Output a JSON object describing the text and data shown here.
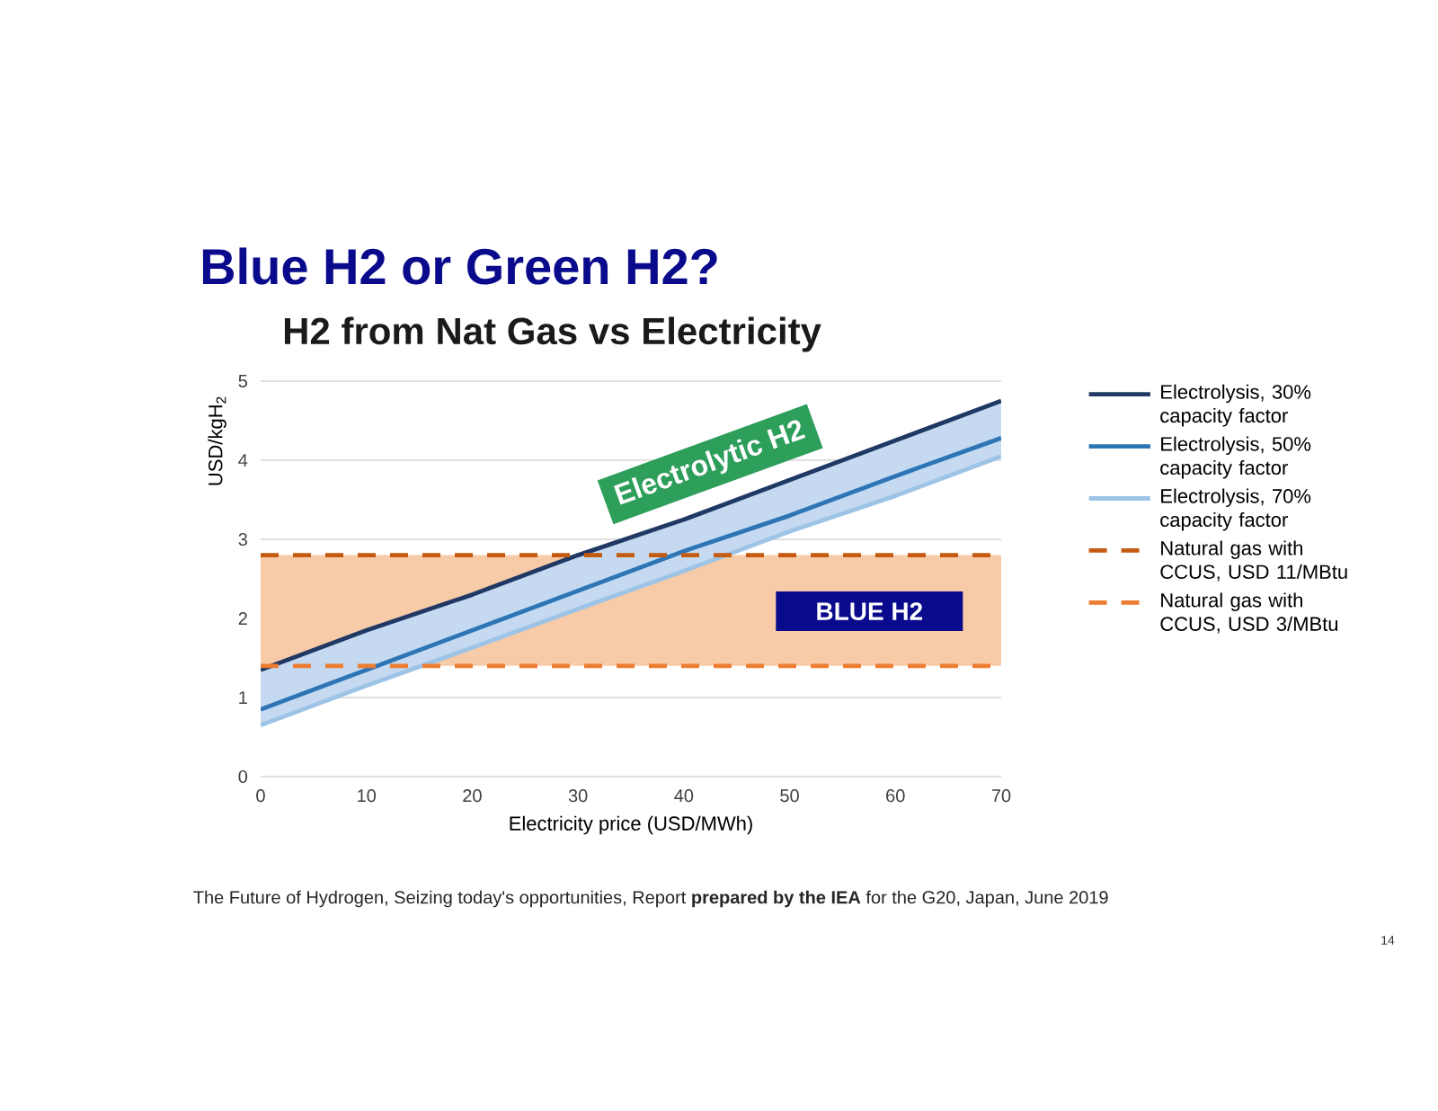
{
  "chart_data": {
    "type": "line",
    "title": "Blue H2 or Green H2?",
    "subtitle": "H2 from Nat Gas vs Electricity",
    "xlabel": "Electricity price (USD/MWh)",
    "ylabel": "USD/kgH$_{2}$",
    "x": [
      0,
      10,
      20,
      30,
      40,
      50,
      60,
      70
    ],
    "series": [
      {
        "name": "Electrolysis, 30% capacity factor",
        "color": "#1f3864",
        "values": [
          1.35,
          1.85,
          2.3,
          2.8,
          3.25,
          3.75,
          4.25,
          4.75
        ]
      },
      {
        "name": "Electrolysis, 50% capacity factor",
        "color": "#2e75b6",
        "values": [
          0.85,
          1.35,
          1.85,
          2.35,
          2.85,
          3.3,
          3.8,
          4.28
        ],
        "lower": [
          0.65,
          1.15,
          1.63,
          2.12,
          2.6,
          3.1,
          3.55,
          4.05
        ],
        "upper": [
          1.35,
          1.85,
          2.3,
          2.8,
          3.25,
          3.75,
          4.25,
          4.75
        ]
      },
      {
        "name": "Electrolysis, 70% capacity factor",
        "color": "#9dc3e6",
        "values": [
          0.65,
          1.15,
          1.63,
          2.12,
          2.6,
          3.1,
          3.55,
          4.05
        ]
      },
      {
        "name": "Natural gas with CCUS, USD 11/MBtu",
        "color": "#c55a11",
        "line_style": "dashed",
        "values": [
          2.8,
          2.8,
          2.8,
          2.8,
          2.8,
          2.8,
          2.8,
          2.8
        ]
      },
      {
        "name": "Natural gas with CCUS, USD 3/MBtu",
        "color": "#ed7d31",
        "line_style": "dashed",
        "values": [
          1.4,
          1.4,
          1.4,
          1.4,
          1.4,
          1.4,
          1.4,
          1.4
        ]
      }
    ],
    "bands": [
      {
        "axis": "y",
        "from": 1.4,
        "to": 2.8,
        "color": "#f8cba8"
      }
    ],
    "xlim": [
      0,
      70
    ],
    "ylim": [
      0,
      5
    ],
    "xticks": [
      0,
      10,
      20,
      30,
      40,
      50,
      60,
      70
    ],
    "yticks": [
      0,
      1,
      2,
      3,
      4,
      5
    ],
    "grid": "y",
    "legend": "right",
    "marker": "none",
    "annotations": [
      "Electrolytic H2",
      "BLUE H2",
      "The Future of Hydrogen, Seizing today's opportunities, Report **prepared by the IEA** for the G20, Japan, June 2019",
      "14"
    ]
  }
}
